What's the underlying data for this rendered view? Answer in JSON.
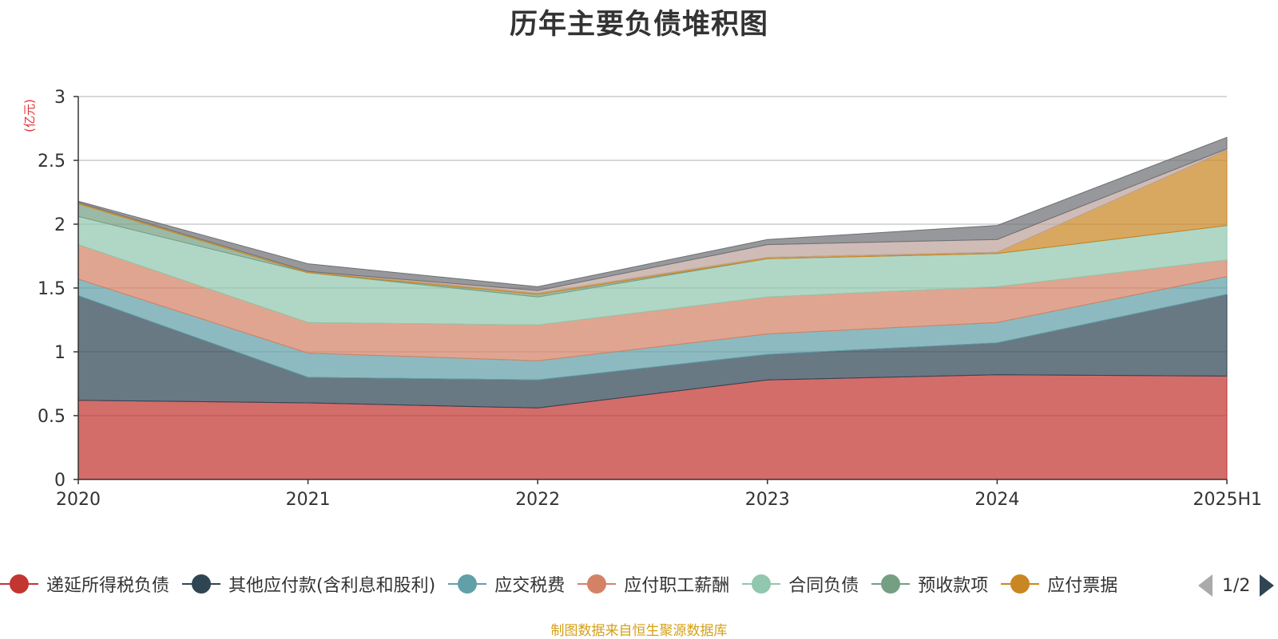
{
  "chart_data": {
    "type": "area",
    "title": "历年主要负债堆积图",
    "unit_label": "(亿元)",
    "categories": [
      "2020",
      "2021",
      "2022",
      "2023",
      "2024",
      "2025H1"
    ],
    "ylim": [
      0,
      3
    ],
    "y_ticks": [
      "0",
      "0.5",
      "1",
      "1.5",
      "2",
      "2.5",
      "3"
    ],
    "stacked": true,
    "grid": true,
    "series": [
      {
        "name": "递延所得税负债",
        "color": "#c23531",
        "values": [
          0.62,
          0.6,
          0.56,
          0.78,
          0.82,
          0.81
        ]
      },
      {
        "name": "其他应付款(含利息和股利)",
        "color": "#2f4554",
        "values": [
          0.82,
          0.2,
          0.22,
          0.2,
          0.25,
          0.64
        ]
      },
      {
        "name": "应交税费",
        "color": "#61a0a8",
        "values": [
          0.13,
          0.19,
          0.15,
          0.16,
          0.16,
          0.14
        ]
      },
      {
        "name": "应付职工薪酬",
        "color": "#d48265",
        "values": [
          0.27,
          0.24,
          0.28,
          0.29,
          0.28,
          0.13
        ]
      },
      {
        "name": "合同负债",
        "color": "#91c7ae",
        "values": [
          0.22,
          0.39,
          0.22,
          0.3,
          0.26,
          0.27
        ]
      },
      {
        "name": "预收款项",
        "color": "#749f83",
        "values": [
          0.1,
          0.0,
          0.02,
          0.0,
          0.0,
          0.0
        ]
      },
      {
        "name": "应付票据",
        "color": "#ca8622",
        "values": [
          0.01,
          0.01,
          0.01,
          0.01,
          0.01,
          0.59
        ]
      },
      {
        "name": "",
        "color": "#bda29a",
        "values": [
          0.0,
          0.0,
          0.02,
          0.1,
          0.1,
          0.01
        ]
      },
      {
        "name": "",
        "color": "#6e7074",
        "values": [
          0.01,
          0.06,
          0.03,
          0.04,
          0.11,
          0.09
        ]
      }
    ]
  },
  "legend": {
    "items": [
      {
        "label": "递延所得税负债",
        "color": "#c23531"
      },
      {
        "label": "其他应付款(含利息和股利)",
        "color": "#2f4554"
      },
      {
        "label": "应交税费",
        "color": "#61a0a8"
      },
      {
        "label": "应付职工薪酬",
        "color": "#d48265"
      },
      {
        "label": "合同负债",
        "color": "#91c7ae"
      },
      {
        "label": "预收款项",
        "color": "#749f83"
      },
      {
        "label": "应付票据",
        "color": "#ca8622"
      }
    ],
    "page_indicator": "1/2"
  },
  "source_note": "制图数据来自恒生聚源数据库"
}
